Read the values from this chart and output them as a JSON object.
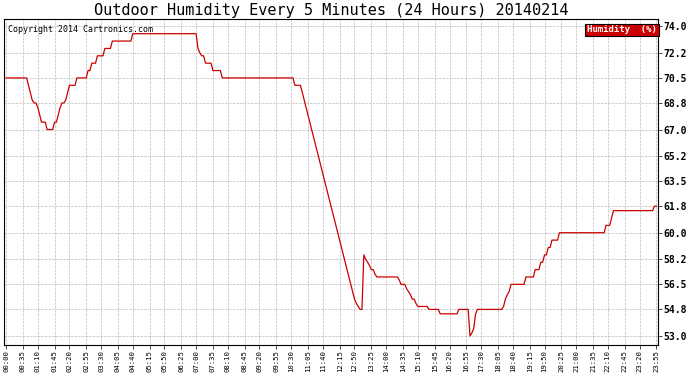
{
  "title": "Outdoor Humidity Every 5 Minutes (24 Hours) 20140214",
  "copyright_text": "Copyright 2014 Cartronics.com",
  "legend_label": "Humidity  (%)",
  "legend_bg": "#CC0000",
  "legend_text_color": "#FFFFFF",
  "line_color": "#CC0000",
  "bg_color": "#FFFFFF",
  "plot_bg_color": "#FFFFFF",
  "grid_color": "#AAAAAA",
  "title_fontsize": 11,
  "yticks": [
    53.0,
    54.8,
    56.5,
    58.2,
    60.0,
    61.8,
    63.5,
    65.2,
    67.0,
    68.8,
    70.5,
    72.2,
    74.0
  ],
  "ylim": [
    52.4,
    74.5
  ],
  "humidity_data": [
    70.5,
    70.5,
    70.5,
    70.5,
    70.5,
    70.5,
    70.5,
    70.5,
    70.5,
    70.5,
    70.5,
    70.5,
    70.0,
    69.5,
    69.0,
    68.8,
    68.8,
    68.5,
    68.0,
    67.5,
    67.5,
    67.5,
    67.0,
    67.0,
    67.0,
    67.0,
    67.5,
    67.5,
    68.0,
    68.5,
    68.8,
    68.8,
    69.0,
    69.5,
    70.0,
    70.0,
    70.0,
    70.0,
    70.5,
    70.5,
    70.5,
    70.5,
    70.5,
    70.5,
    71.0,
    71.0,
    71.5,
    71.5,
    71.5,
    72.0,
    72.0,
    72.0,
    72.0,
    72.5,
    72.5,
    72.5,
    72.5,
    73.0,
    73.0,
    73.0,
    73.0,
    73.0,
    73.0,
    73.0,
    73.0,
    73.0,
    73.0,
    73.0,
    73.5,
    73.5,
    73.5,
    73.5,
    73.5,
    73.5,
    73.5,
    73.5,
    73.5,
    73.5,
    73.5,
    73.5,
    73.5,
    73.5,
    73.5,
    73.5,
    73.5,
    73.5,
    73.5,
    73.5,
    73.5,
    73.5,
    73.5,
    73.5,
    73.5,
    73.5,
    73.5,
    73.5,
    73.5,
    73.5,
    73.5,
    73.5,
    73.5,
    73.5,
    73.5,
    72.5,
    72.2,
    72.0,
    72.0,
    71.5,
    71.5,
    71.5,
    71.5,
    71.0,
    71.0,
    71.0,
    71.0,
    71.0,
    70.5,
    70.5,
    70.5,
    70.5,
    70.5,
    70.5,
    70.5,
    70.5,
    70.5,
    70.5,
    70.5,
    70.5,
    70.5,
    70.5,
    70.5,
    70.5,
    70.5,
    70.5,
    70.5,
    70.5,
    70.5,
    70.5,
    70.5,
    70.5,
    70.5,
    70.5,
    70.5,
    70.5,
    70.5,
    70.5,
    70.5,
    70.5,
    70.5,
    70.5,
    70.5,
    70.5,
    70.5,
    70.5,
    70.5,
    70.0,
    70.0,
    70.0,
    70.0,
    69.5,
    69.0,
    68.5,
    68.0,
    67.5,
    67.0,
    66.5,
    66.0,
    65.5,
    65.0,
    64.5,
    64.0,
    63.5,
    63.0,
    62.5,
    62.0,
    61.5,
    61.0,
    60.5,
    60.0,
    59.5,
    59.0,
    58.5,
    58.0,
    57.5,
    57.0,
    56.5,
    56.0,
    55.5,
    55.2,
    55.0,
    54.8,
    54.8,
    58.5,
    58.2,
    58.0,
    57.8,
    57.5,
    57.5,
    57.2,
    57.0,
    57.0,
    57.0,
    57.0,
    57.0,
    57.0,
    57.0,
    57.0,
    57.0,
    57.0,
    57.0,
    57.0,
    56.8,
    56.5,
    56.5,
    56.5,
    56.2,
    56.0,
    55.8,
    55.5,
    55.5,
    55.2,
    55.0,
    55.0,
    55.0,
    55.0,
    55.0,
    55.0,
    54.8,
    54.8,
    54.8,
    54.8,
    54.8,
    54.8,
    54.5,
    54.5,
    54.5,
    54.5,
    54.5,
    54.5,
    54.5,
    54.5,
    54.5,
    54.5,
    54.8,
    54.8,
    54.8,
    54.8,
    54.8,
    54.8,
    53.0,
    53.2,
    53.5,
    54.5,
    54.8,
    54.8,
    54.8,
    54.8,
    54.8,
    54.8,
    54.8,
    54.8,
    54.8,
    54.8,
    54.8,
    54.8,
    54.8,
    54.8,
    55.0,
    55.5,
    55.8,
    56.0,
    56.5,
    56.5,
    56.5,
    56.5,
    56.5,
    56.5,
    56.5,
    56.5,
    57.0,
    57.0,
    57.0,
    57.0,
    57.0,
    57.5,
    57.5,
    57.5,
    58.0,
    58.0,
    58.5,
    58.5,
    59.0,
    59.0,
    59.5,
    59.5,
    59.5,
    59.5,
    60.0,
    60.0,
    60.0,
    60.0,
    60.0,
    60.0,
    60.0,
    60.0,
    60.0,
    60.0,
    60.0,
    60.0,
    60.0,
    60.0,
    60.0,
    60.0,
    60.0,
    60.0,
    60.0,
    60.0,
    60.0,
    60.0,
    60.0,
    60.0,
    60.0,
    60.5,
    60.5,
    60.5,
    61.0,
    61.5,
    61.5,
    61.5,
    61.5,
    61.5,
    61.5,
    61.5,
    61.5,
    61.5,
    61.5,
    61.5,
    61.5,
    61.5,
    61.5,
    61.5,
    61.5,
    61.5,
    61.5,
    61.5,
    61.5,
    61.5,
    61.5,
    61.8,
    61.8
  ],
  "xtick_labels": [
    "00:00",
    "00:35",
    "01:10",
    "01:45",
    "02:20",
    "02:55",
    "03:30",
    "04:05",
    "04:40",
    "05:15",
    "05:50",
    "06:25",
    "07:00",
    "07:35",
    "08:10",
    "08:45",
    "09:20",
    "09:55",
    "10:30",
    "11:05",
    "11:40",
    "12:15",
    "12:50",
    "13:25",
    "14:00",
    "14:35",
    "15:10",
    "15:45",
    "16:20",
    "16:55",
    "17:30",
    "18:05",
    "18:40",
    "19:15",
    "19:50",
    "20:25",
    "21:00",
    "21:35",
    "22:10",
    "22:45",
    "23:20",
    "23:55"
  ]
}
